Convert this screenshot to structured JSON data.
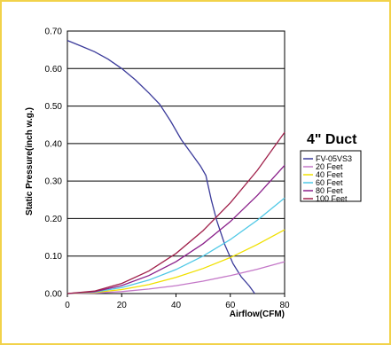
{
  "chart_data": {
    "type": "line",
    "title": "4\" Duct",
    "xlabel": "Airflow(CFM)",
    "ylabel": "Static Pressure(inch w.g.)",
    "xlim": [
      0,
      80
    ],
    "ylim": [
      0,
      0.7
    ],
    "xticks": [
      "0",
      "20",
      "40",
      "60",
      "80"
    ],
    "yticks": [
      "0.00",
      "0.10",
      "0.20",
      "0.30",
      "0.40",
      "0.50",
      "0.60",
      "0.70"
    ],
    "grid": "horizontal",
    "legend_position": "right",
    "series": [
      {
        "name": "FV-05VS3",
        "color": "#3a3a9a",
        "points": [
          [
            0,
            0.675
          ],
          [
            5,
            0.66
          ],
          [
            10,
            0.645
          ],
          [
            15,
            0.625
          ],
          [
            20,
            0.6
          ],
          [
            25,
            0.57
          ],
          [
            30,
            0.535
          ],
          [
            34,
            0.505
          ],
          [
            38,
            0.46
          ],
          [
            42,
            0.41
          ],
          [
            46,
            0.37
          ],
          [
            49,
            0.34
          ],
          [
            51,
            0.315
          ],
          [
            53,
            0.25
          ],
          [
            55,
            0.195
          ],
          [
            58,
            0.13
          ],
          [
            61,
            0.08
          ],
          [
            64,
            0.045
          ],
          [
            67,
            0.02
          ],
          [
            69,
            0.0
          ]
        ]
      },
      {
        "name": "20 Feet",
        "color": "#c478c8",
        "points": [
          [
            0,
            0
          ],
          [
            10,
            0.0013
          ],
          [
            20,
            0.0053
          ],
          [
            30,
            0.012
          ],
          [
            40,
            0.021
          ],
          [
            50,
            0.033
          ],
          [
            60,
            0.048
          ],
          [
            70,
            0.065
          ],
          [
            80,
            0.085
          ]
        ]
      },
      {
        "name": "40 Feet",
        "color": "#f0e000",
        "points": [
          [
            0,
            0
          ],
          [
            10,
            0.0027
          ],
          [
            20,
            0.0107
          ],
          [
            30,
            0.024
          ],
          [
            40,
            0.043
          ],
          [
            50,
            0.067
          ],
          [
            60,
            0.096
          ],
          [
            70,
            0.131
          ],
          [
            80,
            0.17
          ]
        ]
      },
      {
        "name": "60 Feet",
        "color": "#4fc8e6",
        "points": [
          [
            0,
            0
          ],
          [
            10,
            0.004
          ],
          [
            20,
            0.016
          ],
          [
            30,
            0.036
          ],
          [
            40,
            0.064
          ],
          [
            50,
            0.1
          ],
          [
            60,
            0.144
          ],
          [
            70,
            0.196
          ],
          [
            80,
            0.255
          ]
        ]
      },
      {
        "name": "80 Feet",
        "color": "#8a1f8a",
        "points": [
          [
            0,
            0
          ],
          [
            10,
            0.0053
          ],
          [
            20,
            0.0213
          ],
          [
            30,
            0.048
          ],
          [
            40,
            0.085
          ],
          [
            50,
            0.133
          ],
          [
            60,
            0.192
          ],
          [
            70,
            0.262
          ],
          [
            80,
            0.342
          ]
        ]
      },
      {
        "name": "100 Feet",
        "color": "#a0204a",
        "points": [
          [
            0,
            0
          ],
          [
            10,
            0.0067
          ],
          [
            20,
            0.027
          ],
          [
            30,
            0.06
          ],
          [
            40,
            0.107
          ],
          [
            50,
            0.168
          ],
          [
            60,
            0.242
          ],
          [
            70,
            0.329
          ],
          [
            80,
            0.43
          ]
        ]
      }
    ]
  }
}
